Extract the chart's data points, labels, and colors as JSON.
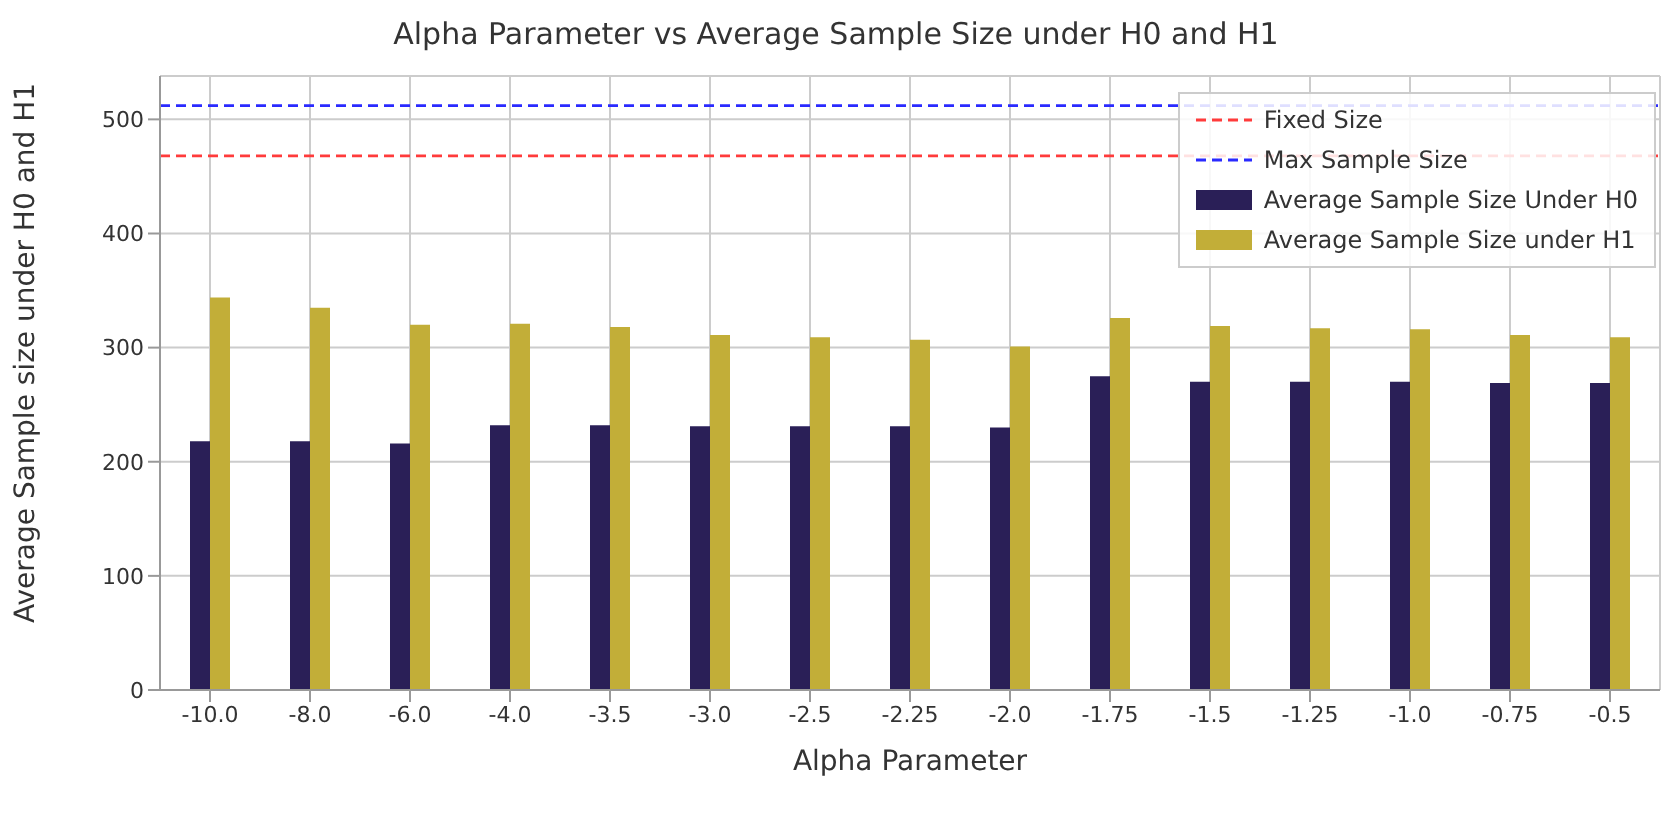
{
  "chart_data": {
    "type": "bar",
    "title": "Alpha Parameter vs Average Sample Size under H0 and H1",
    "xlabel": "Alpha Parameter",
    "ylabel": "Average Sample size under H0 and H1",
    "categories": [
      "-10.0",
      "-8.0",
      "-6.0",
      "-4.0",
      "-3.5",
      "-3.0",
      "-2.5",
      "-2.25",
      "-2.0",
      "-1.75",
      "-1.5",
      "-1.25",
      "-1.0",
      "-0.75",
      "-0.5"
    ],
    "series": [
      {
        "name": "Average Sample Size Under H0",
        "color": "#2a1f57",
        "values": [
          218,
          218,
          216,
          232,
          232,
          231,
          231,
          231,
          230,
          275,
          270,
          270,
          270,
          269,
          269
        ]
      },
      {
        "name": "Average Sample Size under H1",
        "color": "#c2ae38",
        "values": [
          344,
          335,
          320,
          321,
          318,
          311,
          309,
          307,
          301,
          326,
          319,
          317,
          316,
          311,
          309
        ]
      }
    ],
    "ref_lines": [
      {
        "axis": "y",
        "value": 468,
        "label": "Fixed Size",
        "color": "#ff3b3b",
        "line_style": "dashed"
      },
      {
        "axis": "y",
        "value": 512,
        "label": "Max Sample Size",
        "color": "#2a2aff",
        "line_style": "dashed"
      }
    ],
    "ylim": [
      0,
      538
    ],
    "yticks": [
      0,
      100,
      200,
      300,
      400,
      500
    ],
    "grid": true,
    "legend": "top right"
  }
}
